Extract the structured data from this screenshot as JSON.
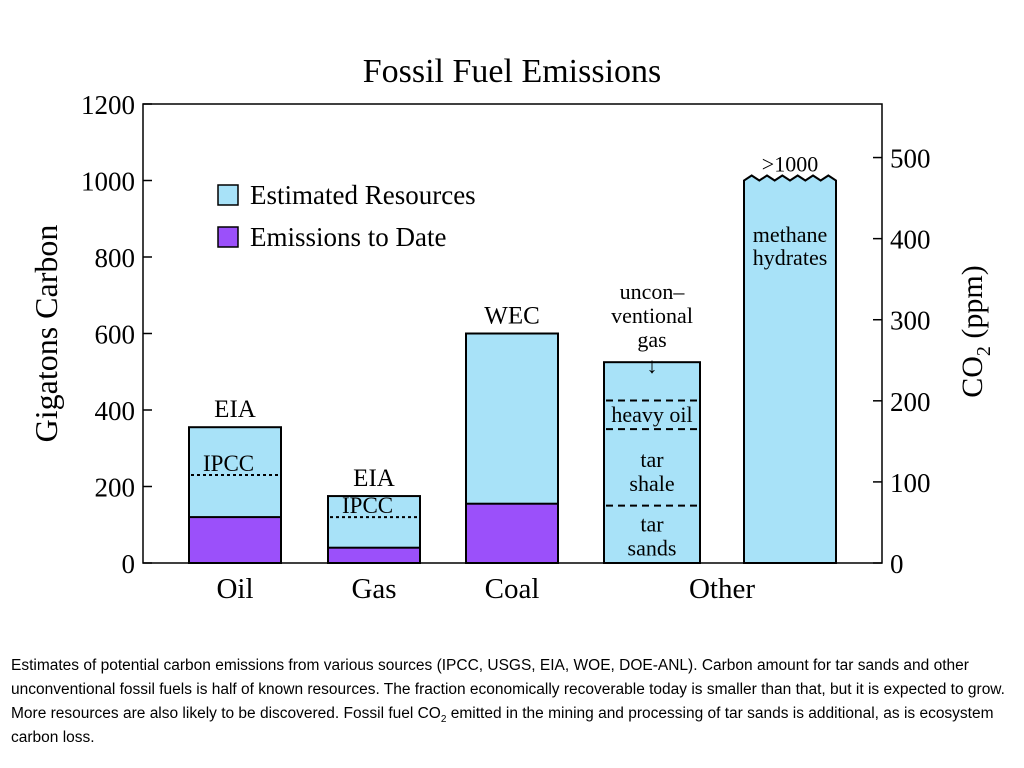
{
  "chart_data": {
    "type": "bar",
    "title": "Fossil Fuel Emissions",
    "ylabel": "Gigatons Carbon",
    "y2label_main": "CO",
    "y2label_sub": "2",
    "y2label_tail": " (ppm)",
    "ylim": [
      0,
      1200
    ],
    "y_ticks": [
      "0",
      "200",
      "400",
      "600",
      "800",
      "1000",
      "1200"
    ],
    "y2_ticks": [
      "0",
      "100",
      "200",
      "300",
      "400",
      "500"
    ],
    "categories": [
      "Oil",
      "Gas",
      "Coal",
      "Other"
    ],
    "legend": [
      {
        "label": "Estimated Resources",
        "color": "#a8e2f8"
      },
      {
        "label": "Emissions to Date",
        "color": "#9b50fa"
      }
    ],
    "series": [
      {
        "name": "Estimated Resources",
        "values": [
          355,
          175,
          600,
          1000
        ]
      },
      {
        "name": "Emissions to Date",
        "values": [
          120,
          40,
          155,
          0
        ]
      }
    ],
    "reference_lines": [
      {
        "category": "Oil",
        "value": 230,
        "label": "IPCC"
      },
      {
        "category": "Gas",
        "value": 120,
        "label": "IPCC"
      }
    ],
    "top_labels": {
      "Oil": "EIA",
      "Gas": "EIA",
      "Coal": "WEC",
      "Other": ">1000"
    },
    "other_bars": [
      {
        "id": "unconventional",
        "top": 525,
        "top_label": [
          "uncon–",
          "ventional",
          "gas"
        ],
        "arrow": "↓",
        "dividers": [
          425,
          350,
          150
        ],
        "segments": [
          {
            "label": [
              "heavy oil"
            ],
            "center": 390
          },
          {
            "label": [
              "tar",
              "shale"
            ],
            "center": 240
          },
          {
            "label": [
              "tar",
              "sands"
            ],
            "center": 72
          }
        ]
      },
      {
        "id": "methane",
        "top": 1000,
        "top_label": [
          ">1000"
        ],
        "segments": [
          {
            "label": [
              "methane",
              "hydrates"
            ],
            "center": 830
          }
        ]
      }
    ]
  },
  "caption": {
    "part1": "Estimates of potential carbon emissions from various sources (IPCC, USGS, EIA, WOE, DOE-ANL).  Carbon amount for tar sands and other unconventional fossil fuels is half of known resources.  The fraction economically recoverable today is smaller than that, but it is expected to grow.  More resources are also likely to be discovered.  Fossil fuel CO",
    "sub": "2",
    "part2": " emitted in the mining and processing of tar sands is additional, as is ecosystem carbon loss."
  },
  "colors": {
    "resource": "#a8e2f8",
    "emission": "#9b50fa",
    "stroke": "#000000"
  }
}
